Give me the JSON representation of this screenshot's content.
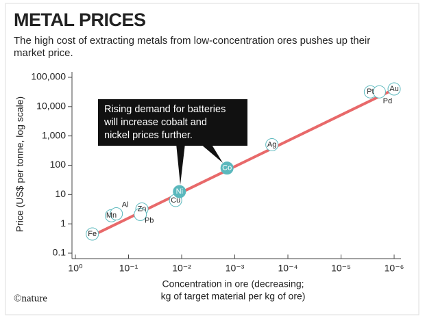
{
  "chart_data": {
    "type": "scatter",
    "title": "METAL PRICES",
    "subtitle_lines": [
      "The high cost of extracting metals from low-concentration ores pushes up their",
      "market price."
    ],
    "x_label_lines": [
      "Concentration in ore (decreasing;",
      "kg of target material per kg of ore)"
    ],
    "y_label": "Price (US$ per tonne, log scale)",
    "credit": "©nature",
    "x_log": true,
    "y_log": true,
    "xlim": [
      1,
      1e-06
    ],
    "ylim": [
      0.1,
      100000
    ],
    "xticks": [
      {
        "value": 1,
        "label": "10⁰"
      },
      {
        "value": 0.1,
        "label": "10⁻¹"
      },
      {
        "value": 0.01,
        "label": "10⁻²"
      },
      {
        "value": 0.001,
        "label": "10⁻³"
      },
      {
        "value": 0.0001,
        "label": "10⁻⁴"
      },
      {
        "value": 1e-05,
        "label": "10⁻⁵"
      },
      {
        "value": 1e-06,
        "label": "10⁻⁶"
      }
    ],
    "yticks": [
      0.1,
      1,
      10,
      100,
      {
        "value": 1000,
        "label": "1,000"
      },
      {
        "value": 10000,
        "label": "10,000"
      },
      {
        "value": 100000,
        "label": "100,000"
      }
    ],
    "trend_line": {
      "x": [
        0.45,
        1.1e-06
      ],
      "y": [
        0.42,
        36000
      ],
      "color": "#e8696a"
    },
    "points": [
      {
        "label": "Fe",
        "x": 0.48,
        "y": 0.45,
        "fill": "#ffffff"
      },
      {
        "label": "Mn",
        "x": 0.21,
        "y": 1.9,
        "fill": "#ffffff"
      },
      {
        "label": "Al",
        "x": 0.17,
        "y": 2.2,
        "fill": "#ffffff"
      },
      {
        "label": "Zn",
        "x": 0.056,
        "y": 3.2,
        "fill": "#ffffff"
      },
      {
        "label": "Pb",
        "x": 0.06,
        "y": 2.1,
        "fill": "#ffffff"
      },
      {
        "label": "Cu",
        "x": 0.013,
        "y": 6.3,
        "fill": "#ffffff"
      },
      {
        "label": "Ni",
        "x": 0.011,
        "y": 12.6,
        "fill": "#5bb8bd"
      },
      {
        "label": "Co",
        "x": 0.0014,
        "y": 80,
        "fill": "#5bb8bd"
      },
      {
        "label": "Ag",
        "x": 0.0002,
        "y": 500,
        "fill": "#ffffff"
      },
      {
        "label": "Pt",
        "x": 2.8e-06,
        "y": 32000,
        "fill": "#ffffff"
      },
      {
        "label": "Pd",
        "x": 1.9e-06,
        "y": 32000,
        "fill": "#ffffff"
      },
      {
        "label": "Au",
        "x": 1e-06,
        "y": 40000,
        "fill": "#ffffff"
      }
    ],
    "point_stroke": "#5bb8bd",
    "annotation_lines": [
      "Rising demand for batteries",
      "will increase cobalt and",
      "nickel prices further."
    ]
  }
}
